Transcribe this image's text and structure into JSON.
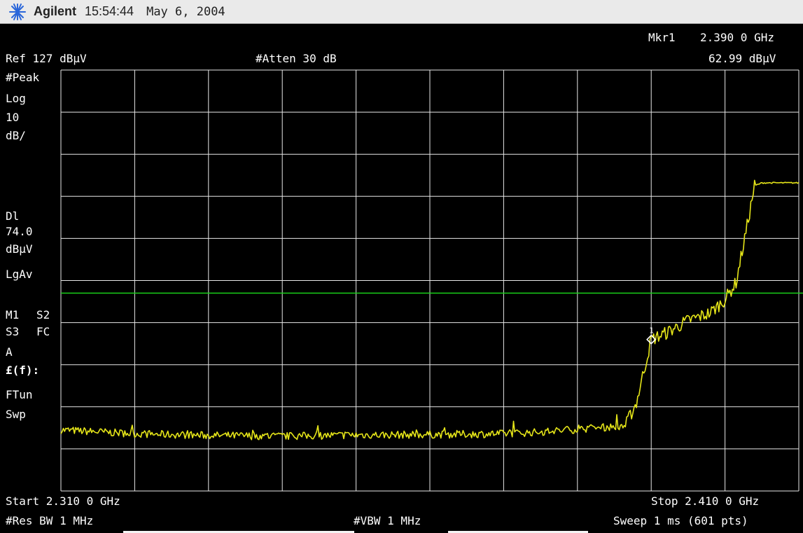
{
  "header": {
    "brand": "Agilent",
    "time": "15:54:44",
    "date": "May 6, 2004",
    "logo_icon": "agilent-spark-icon"
  },
  "top": {
    "marker_label": "Mkr1",
    "marker_freq": "2.390 0 GHz",
    "ref_level": "Ref 127 dBμV",
    "atten": "#Atten 30 dB",
    "marker_amp": "62.99 dBμV"
  },
  "side": {
    "detector": "#Peak",
    "scale_type": "Log",
    "scale_value": "10",
    "scale_unit": "dB/",
    "dl_label": "Dl",
    "dl_value": "74.0",
    "dl_unit": "dBμV",
    "avg_type": "LgAv",
    "m1": "M1",
    "s2": "S2",
    "s3": "S3",
    "fc": "FC",
    "a": "A",
    "ef": "£(f):",
    "ftun": "FTun",
    "swp": "Swp"
  },
  "bottom": {
    "start": "Start 2.310 0 GHz",
    "stop": "Stop 2.410 0 GHz",
    "res_bw": "#Res BW 1 MHz",
    "vbw": "#VBW 1 MHz",
    "sweep": "Sweep 1 ms (601 pts)"
  },
  "marker": {
    "number": "1",
    "freq_ghz": 2.39,
    "amp_dbuv": 62.99
  },
  "colors": {
    "background": "#000000",
    "grid": "#e8e8e8",
    "trace": "#e6e619",
    "display_line": "#19d119",
    "marker": "#ffffff",
    "header_bg": "#eaeaea"
  },
  "chart_data": {
    "type": "line",
    "x_range": [
      2.31,
      2.41
    ],
    "y_range": [
      27,
      127
    ],
    "ref_level": 127,
    "db_per_div": 10,
    "display_line": 74.0,
    "x": [
      2.31,
      2.32,
      2.33,
      2.34,
      2.35,
      2.36,
      2.37,
      2.375,
      2.3865,
      2.388,
      2.39,
      2.392,
      2.395,
      2.398,
      2.4,
      2.4015,
      2.403,
      2.404,
      2.405,
      2.41
    ],
    "y": [
      41.5,
      40.6,
      40.2,
      40.0,
      40.3,
      40.4,
      40.6,
      41.0,
      42.5,
      48,
      62.99,
      64.5,
      67.5,
      69.3,
      72.5,
      76.5,
      90,
      99.5,
      100.2,
      100.2
    ]
  }
}
